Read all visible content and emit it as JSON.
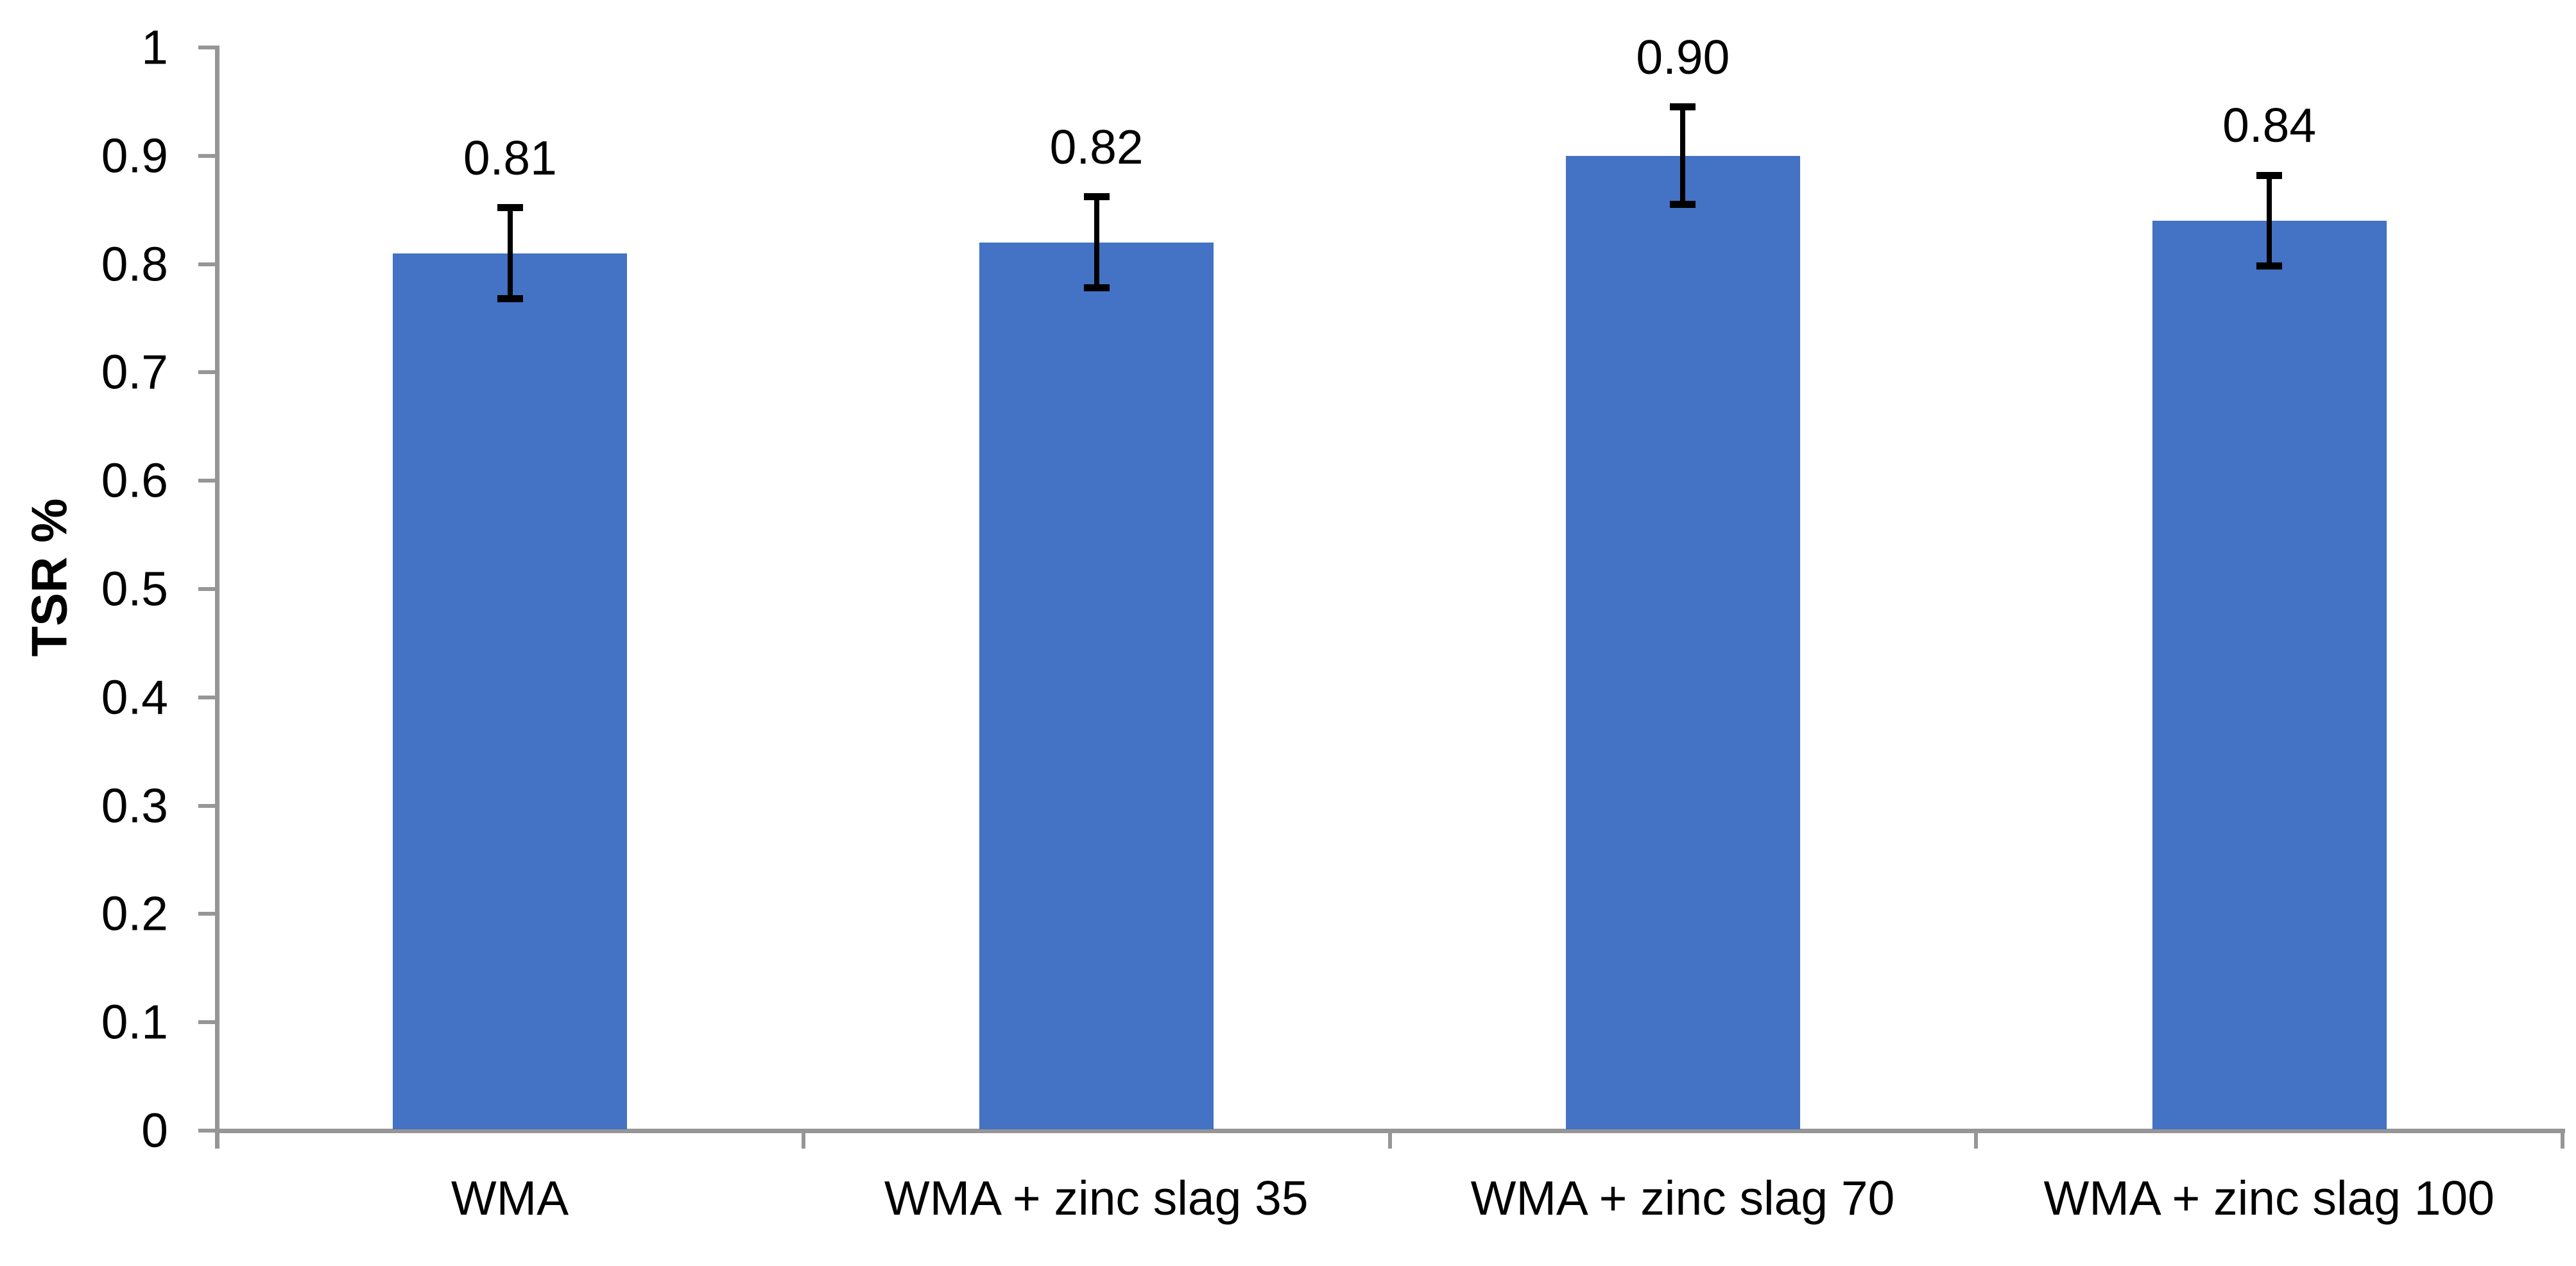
{
  "chart_data": {
    "type": "bar",
    "title": "",
    "xlabel": "",
    "ylabel": "TSR %",
    "categories": [
      "WMA",
      "WMA + zinc slag 35",
      "WMA + zinc slag 70",
      "WMA + zinc slag 100"
    ],
    "values": [
      0.81,
      0.82,
      0.9,
      0.84
    ],
    "bar_labels": [
      "0.81",
      "0.82",
      "0.90",
      "0.84"
    ],
    "error_plus": [
      0.042,
      0.042,
      0.045,
      0.042
    ],
    "error_minus": [
      0.042,
      0.042,
      0.045,
      0.042
    ],
    "ylim": [
      0,
      1
    ],
    "ytick_step": 0.1,
    "ytick_labels": [
      "0",
      "0.1",
      "0.2",
      "0.3",
      "0.4",
      "0.5",
      "0.6",
      "0.7",
      "0.8",
      "0.9",
      "1"
    ],
    "grid": false,
    "legend_position": "none",
    "bar_color": "#4472C4",
    "axis_color": "#969696",
    "error_color": "#000000",
    "label_color": "#000000"
  }
}
